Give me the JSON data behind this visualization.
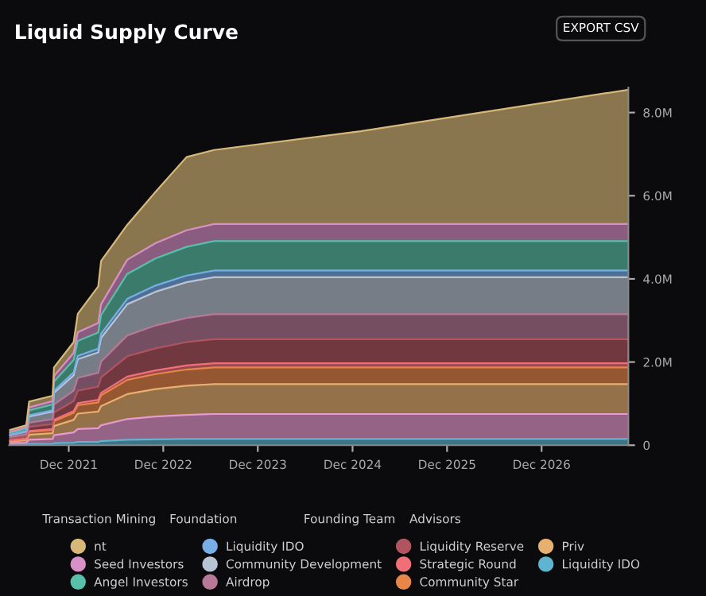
{
  "chart_data": {
    "type": "area",
    "stacked": true,
    "title": "Liquid Supply Curve",
    "annotations": [
      "Transaction Mining",
      "Foundation",
      "Founding Team",
      "Advisors",
      "EXPORT CSV"
    ],
    "x": [
      "2021-04-15",
      "2021-06-20",
      "2021-07-01",
      "2021-09-30",
      "2021-10-05",
      "2021-12-20",
      "2022-01-05",
      "2022-03-25",
      "2022-04-05",
      "2022-07-15",
      "2022-11-01",
      "2023-03-01",
      "2023-06-15",
      "2025-01-01",
      "2027-11-01"
    ],
    "series": [
      {
        "name": "Liquidity IDO",
        "color": "#5fb4d0",
        "values": [
          0.01,
          0.01,
          0.03,
          0.03,
          0.05,
          0.06,
          0.08,
          0.08,
          0.1,
          0.13,
          0.14,
          0.15,
          0.15,
          0.15,
          0.15
        ]
      },
      {
        "color": "#e89ad0",
        "values": [
          0.04,
          0.05,
          0.1,
          0.12,
          0.19,
          0.25,
          0.31,
          0.33,
          0.38,
          0.5,
          0.55,
          0.58,
          0.6,
          0.6,
          0.6
        ]
      },
      {
        "name": "Priv",
        "color": "#e8b070",
        "values": [
          0.04,
          0.06,
          0.12,
          0.14,
          0.22,
          0.3,
          0.37,
          0.4,
          0.46,
          0.6,
          0.66,
          0.7,
          0.72,
          0.72,
          0.72
        ]
      },
      {
        "name": "Community Star",
        "color": "#e8864a",
        "values": [
          0.02,
          0.03,
          0.07,
          0.08,
          0.12,
          0.17,
          0.2,
          0.22,
          0.26,
          0.34,
          0.36,
          0.39,
          0.4,
          0.4,
          0.4
        ]
      },
      {
        "name": "Strategic Round",
        "color": "#f07078",
        "values": [
          0.01,
          0.01,
          0.02,
          0.02,
          0.03,
          0.04,
          0.05,
          0.06,
          0.06,
          0.08,
          0.09,
          0.1,
          0.1,
          0.1,
          0.1
        ]
      },
      {
        "name": "Liquidity Reserve",
        "color": "#b05560",
        "values": [
          0.03,
          0.05,
          0.1,
          0.12,
          0.18,
          0.24,
          0.3,
          0.32,
          0.37,
          0.49,
          0.53,
          0.56,
          0.58,
          0.58,
          0.58
        ]
      },
      {
        "name": "Airdrop",
        "color": "#b87898",
        "values": [
          0.04,
          0.05,
          0.1,
          0.12,
          0.19,
          0.25,
          0.31,
          0.33,
          0.38,
          0.5,
          0.55,
          0.58,
          0.6,
          0.6,
          0.6
        ]
      },
      {
        "name": "Community Development",
        "color": "#b8c4d4",
        "values": [
          0.05,
          0.07,
          0.15,
          0.18,
          0.28,
          0.37,
          0.45,
          0.49,
          0.57,
          0.75,
          0.81,
          0.86,
          0.89,
          0.89,
          0.89
        ]
      },
      {
        "name": "Liquidity IDO",
        "color": "#78aee8",
        "values": [
          0.01,
          0.01,
          0.03,
          0.03,
          0.05,
          0.07,
          0.08,
          0.09,
          0.1,
          0.13,
          0.15,
          0.16,
          0.16,
          0.16,
          0.16
        ]
      },
      {
        "name": "Angel Investors",
        "color": "#58c0a8",
        "values": [
          0.04,
          0.06,
          0.12,
          0.14,
          0.22,
          0.3,
          0.36,
          0.39,
          0.45,
          0.6,
          0.65,
          0.69,
          0.71,
          0.71,
          0.71
        ]
      },
      {
        "name": "Seed Investors",
        "color": "#d890c8",
        "values": [
          0.02,
          0.03,
          0.07,
          0.08,
          0.13,
          0.17,
          0.21,
          0.23,
          0.26,
          0.34,
          0.37,
          0.4,
          0.41,
          0.41,
          0.41
        ]
      },
      {
        "name": "nt",
        "color": "#d8b878",
        "values": [
          0.05,
          0.05,
          0.14,
          0.13,
          0.21,
          0.26,
          0.44,
          0.88,
          1.04,
          0.84,
          1.23,
          1.76,
          1.78,
          2.23,
          3.23
        ]
      }
    ],
    "xlim": [
      "2021-04-15",
      "2027-11-01"
    ],
    "xticks": [
      {
        "value": "2021-12-01",
        "label": "Dec 2021"
      },
      {
        "value": "2022-12-01",
        "label": "Dec 2022"
      },
      {
        "value": "2023-12-01",
        "label": "Dec 2023"
      },
      {
        "value": "2024-12-01",
        "label": "Dec 2024"
      },
      {
        "value": "2025-12-01",
        "label": "Dec 2025"
      },
      {
        "value": "2026-12-01",
        "label": "Dec 2026"
      }
    ],
    "ylim": [
      0,
      8.6
    ],
    "yticks": [
      0,
      {
        "value": 2,
        "label": "2.0M"
      },
      {
        "value": 4,
        "label": "4.0M"
      },
      {
        "value": 6,
        "label": "6.0M"
      },
      {
        "value": 8,
        "label": "8.0M"
      }
    ],
    "grid": false,
    "legend": "bottom"
  }
}
